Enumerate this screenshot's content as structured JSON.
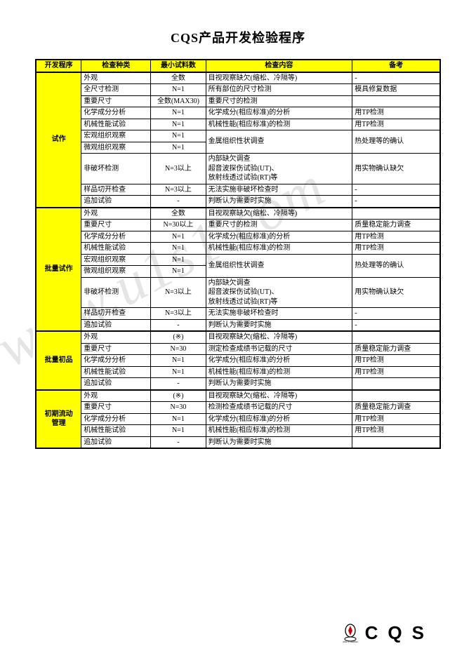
{
  "title": "CQS产品开发检验程序",
  "watermark": "www.u1s1.com",
  "footer_brand": "CQS",
  "headers": {
    "stage": "开发程序",
    "kind": "检查种类",
    "qty": "最小试料数",
    "content": "检查内容",
    "remark": "备考"
  },
  "groups": [
    {
      "stage": "试作",
      "rows": [
        {
          "kind": "外观",
          "qty": "全数",
          "content": "目视观察缺欠(缩松、冷隔等)",
          "remark": "-"
        },
        {
          "kind": "全尺寸检测",
          "qty": "N=1",
          "content": "所有部位的尺寸检测",
          "remark": "模具修复数据"
        },
        {
          "kind": "重要尺寸",
          "qty": "全数(MAX30)",
          "content": "重要尺寸的检测",
          "remark": ""
        },
        {
          "kind": "化学成分分析",
          "qty": "N=1",
          "content": "化学成分(相应标准)的分析",
          "remark": "用TP检测"
        },
        {
          "kind": "机械性能试验",
          "qty": "N=1",
          "content": "机械性能(相应标准)的检测",
          "remark": "用TP检测"
        },
        {
          "kind": "宏观组织观察",
          "qty": "N=1",
          "content": "金属组织性状调查",
          "remark": "热处理等的确认",
          "merge_next": true
        },
        {
          "kind": "微观组织观察",
          "qty": "N=1",
          "content": "",
          "remark": ""
        },
        {
          "kind": "非破坏检测",
          "qty": "N=3以上",
          "content": "内部缺欠调查\n超音波探伤试验(UT)、\n放射线透过试验(RT)等",
          "remark": "用实物确认缺欠"
        },
        {
          "kind": "样品切开检查",
          "qty": "N=3以上",
          "content": "无法实施非破坏检查时",
          "remark": "-"
        },
        {
          "kind": "追加试验",
          "qty": "-",
          "content": "判断认为需要时实施",
          "remark": "-"
        }
      ]
    },
    {
      "stage": "批量试作",
      "rows": [
        {
          "kind": "外观",
          "qty": "全数",
          "content": "目视观察缺欠(缩松、冷隔等)",
          "remark": ""
        },
        {
          "kind": "重要尺寸",
          "qty": "N=30以上",
          "content": "重要尺寸的检测",
          "remark": "质量稳定能力调查"
        },
        {
          "kind": "化学成分分析",
          "qty": "N=1",
          "content": "化学成分(相应标准)的分析",
          "remark": "用TP检测"
        },
        {
          "kind": "机械性能试验",
          "qty": "N=1",
          "content": "机械性能(相应标准)的检测",
          "remark": "用TP检测"
        },
        {
          "kind": "宏观组织观察",
          "qty": "N=1",
          "content": "金属组织性状调查",
          "remark": "热处理等的确认",
          "merge_next": true
        },
        {
          "kind": "微观组织观察",
          "qty": "N=1",
          "content": "",
          "remark": ""
        },
        {
          "kind": "非破坏检测",
          "qty": "N=3以上",
          "content": "内部缺欠调查\n超音波探伤试验(UT)、\n放射线透过试验(RT)等",
          "remark": "用实物确认缺欠"
        },
        {
          "kind": "样品切开检查",
          "qty": "N=3以上",
          "content": "无法实施非破坏检查时",
          "remark": "-"
        },
        {
          "kind": "追加试验",
          "qty": "-",
          "content": "判断认为需要时实施",
          "remark": "-"
        }
      ]
    },
    {
      "stage": "批量初品",
      "rows": [
        {
          "kind": "外观",
          "qty": "(※)",
          "content": "目视观察缺欠(缩松、冷隔等)",
          "remark": ""
        },
        {
          "kind": "重要尺寸",
          "qty": "N=30",
          "content": "测定检查成绩书记载的尺寸",
          "remark": "质量稳定能力调查"
        },
        {
          "kind": "化学成分分析",
          "qty": "N=1",
          "content": "化学成分(相应标准)的分析",
          "remark": "用TP检测"
        },
        {
          "kind": "机械性能试验",
          "qty": "N=1",
          "content": "机械性能(相应标准)的检测",
          "remark": "用TP检测"
        },
        {
          "kind": "追加试验",
          "qty": "-",
          "content": "判断认为需要时实施",
          "remark": ""
        }
      ]
    },
    {
      "stage": "初期流动\n管理",
      "rows": [
        {
          "kind": "外观",
          "qty": "(※)",
          "content": "目视观察缺欠(缩松、冷隔等)",
          "remark": ""
        },
        {
          "kind": "重要尺寸",
          "qty": "N=30",
          "content": "检测检查成绩书记载的尺寸",
          "remark": "质量稳定能力调查"
        },
        {
          "kind": "化学成分分析",
          "qty": "N=1",
          "content": "化学成分(相应标准)的分析",
          "remark": "用TP检测"
        },
        {
          "kind": "机械性能试验",
          "qty": "N=1",
          "content": "机械性能(相应标准)的检测",
          "remark": "用TP检测"
        },
        {
          "kind": "追加试验",
          "qty": "-",
          "content": "判断认为需要时实施",
          "remark": ""
        }
      ]
    }
  ],
  "colors": {
    "header_bg": "#ffff00",
    "border": "#000000",
    "watermark": "rgba(0,0,0,0.10)"
  }
}
